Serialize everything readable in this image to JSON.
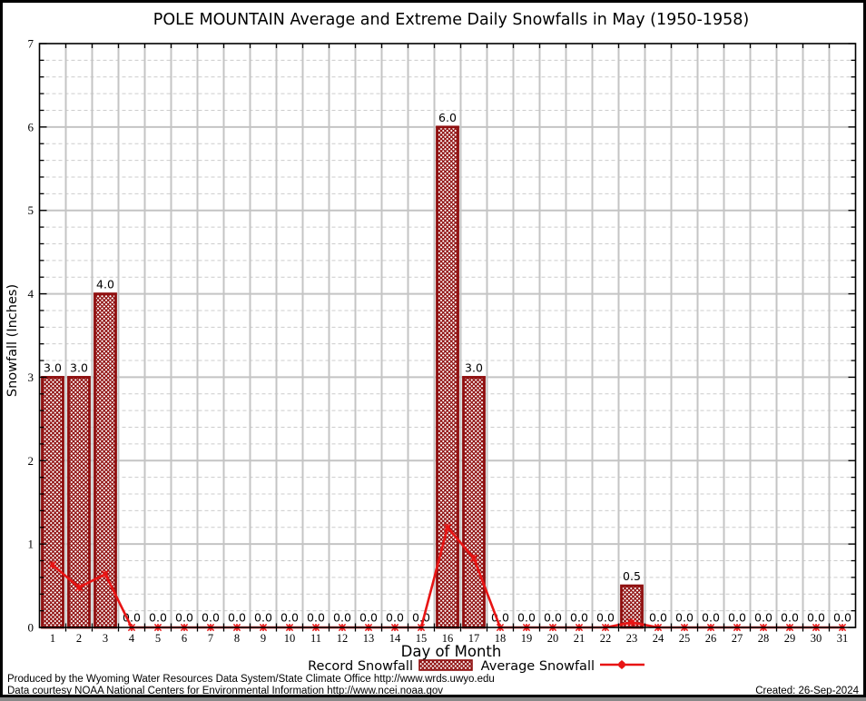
{
  "chart": {
    "title": "POLE MOUNTAIN Average and Extreme Daily Snowfalls in May (1950-1958)",
    "x_axis_label": "Day of Month",
    "y_axis_label": "Snowfall (Inches)",
    "legend": {
      "record_label": "Record Snowfall",
      "average_label": "Average Snowfall"
    }
  },
  "footer": {
    "line1": "Produced by the Wyoming Water Resources Data System/State Climate Office http://www.wrds.uwyo.edu",
    "line2": "Data courtesy NOAA National Centers for Environmental Information http://www.ncei.noaa.gov",
    "created": "Created: 26-Sep-2024"
  },
  "chart_data": {
    "type": "bar",
    "title": "POLE MOUNTAIN Average and Extreme Daily Snowfalls in May (1950-1958)",
    "xlabel": "Day of Month",
    "ylabel": "Snowfall (Inches)",
    "categories": [
      1,
      2,
      3,
      4,
      5,
      6,
      7,
      8,
      9,
      10,
      11,
      12,
      13,
      14,
      15,
      16,
      17,
      18,
      19,
      20,
      21,
      22,
      23,
      24,
      25,
      26,
      27,
      28,
      29,
      30,
      31
    ],
    "series": [
      {
        "name": "Record Snowfall",
        "type": "bar",
        "values": [
          3.0,
          3.0,
          4.0,
          0.0,
          0.0,
          0.0,
          0.0,
          0.0,
          0.0,
          0.0,
          0.0,
          0.0,
          0.0,
          0.0,
          0.0,
          6.0,
          3.0,
          0.0,
          0.0,
          0.0,
          0.0,
          0.0,
          0.5,
          0.0,
          0.0,
          0.0,
          0.0,
          0.0,
          0.0,
          0.0,
          0.0
        ]
      },
      {
        "name": "Average Snowfall",
        "type": "line",
        "values": [
          0.75,
          0.48,
          0.64,
          0.0,
          0.0,
          0.0,
          0.0,
          0.0,
          0.0,
          0.0,
          0.0,
          0.0,
          0.0,
          0.0,
          0.0,
          1.2,
          0.83,
          0.0,
          0.0,
          0.0,
          0.0,
          0.0,
          0.06,
          0.0,
          0.0,
          0.0,
          0.0,
          0.0,
          0.0,
          0.0,
          0.0
        ]
      }
    ],
    "bar_value_labels": [
      "3.0",
      "3.0",
      "4.0",
      "0.0",
      "0.0",
      "0.0",
      "0.0",
      "0.0",
      "0.0",
      "0.0",
      "0.0",
      "0.0",
      "0.0",
      "0.0",
      "0.0",
      "6.0",
      "3.0",
      "0.0",
      "0.0",
      "0.0",
      "0.0",
      "0.0",
      "0.5",
      "0.0",
      "0.0",
      "0.0",
      "0.0",
      "0.0",
      "0.0",
      "0.0",
      "0.0"
    ],
    "ylim": [
      0,
      7
    ],
    "xlim": [
      0.5,
      31.5
    ],
    "y_major_step": 1,
    "y_minor_step": 0.2,
    "grid": "vertical solid at day boundaries; horizontal solid at integers; horizontal dashed minors",
    "legend_position": "bottom",
    "colors": {
      "bar_edge": "#8f0f0f",
      "bar_hatch": "#8f0f0f",
      "line": "#e81414",
      "grid_major": "#c4c4c4",
      "grid_minor": "#cccccc",
      "text": "#000000",
      "background": "#ffffff"
    }
  }
}
